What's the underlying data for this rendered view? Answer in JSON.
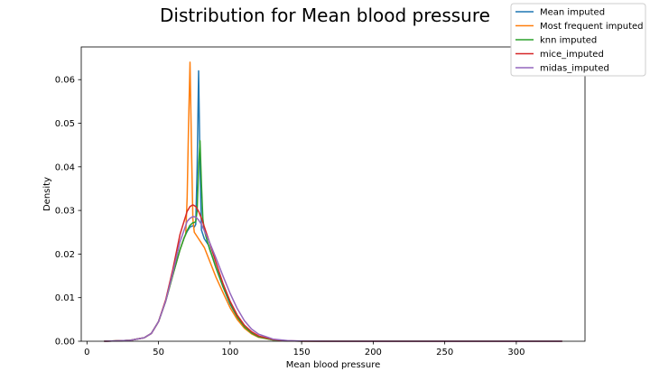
{
  "chart_data": {
    "type": "line",
    "title": "Distribution for Mean blood pressure",
    "xlabel": "Mean blood pressure",
    "ylabel": "Density",
    "xlim": [
      -4,
      348
    ],
    "ylim": [
      0,
      0.0675
    ],
    "x_ticks": [
      0,
      50,
      100,
      150,
      200,
      250,
      300
    ],
    "y_ticks": [
      0.0,
      0.01,
      0.02,
      0.03,
      0.04,
      0.05,
      0.06
    ],
    "y_tick_labels": [
      "0.00",
      "0.01",
      "0.02",
      "0.03",
      "0.04",
      "0.05",
      "0.06"
    ],
    "grid": false,
    "legend_position": "top-right",
    "series": [
      {
        "name": "Mean imputed",
        "color": "#1f77b4",
        "x": [
          12,
          30,
          40,
          45,
          50,
          55,
          60,
          65,
          68,
          70,
          72,
          74,
          75,
          76,
          77,
          78,
          79,
          80,
          81,
          82,
          85,
          88,
          90,
          95,
          100,
          105,
          110,
          115,
          120,
          130,
          140,
          150,
          170,
          200,
          250,
          300,
          332
        ],
        "y": [
          0,
          0.0002,
          0.0008,
          0.0018,
          0.0045,
          0.0092,
          0.0152,
          0.021,
          0.0238,
          0.0252,
          0.0262,
          0.0265,
          0.0262,
          0.0268,
          0.04,
          0.062,
          0.04,
          0.0255,
          0.0245,
          0.0235,
          0.022,
          0.019,
          0.017,
          0.0125,
          0.0085,
          0.0055,
          0.0032,
          0.0018,
          0.001,
          0.0003,
          8e-05,
          2e-05,
          0,
          0,
          0,
          0,
          0
        ]
      },
      {
        "name": "Most frequent imputed",
        "color": "#ff7f0e",
        "x": [
          12,
          30,
          40,
          45,
          50,
          55,
          60,
          65,
          68,
          69,
          70,
          71,
          72,
          73,
          74,
          75,
          78,
          80,
          82,
          85,
          88,
          90,
          95,
          100,
          105,
          110,
          115,
          120,
          130,
          140,
          150,
          170,
          200,
          250,
          300,
          332
        ],
        "y": [
          0,
          0.0002,
          0.0008,
          0.0018,
          0.0045,
          0.0092,
          0.0152,
          0.021,
          0.0238,
          0.0245,
          0.033,
          0.05,
          0.064,
          0.045,
          0.028,
          0.025,
          0.0235,
          0.0225,
          0.0215,
          0.019,
          0.0165,
          0.0148,
          0.0112,
          0.0077,
          0.005,
          0.003,
          0.0017,
          0.0009,
          0.0003,
          8e-05,
          2e-05,
          0,
          0,
          0,
          0,
          0
        ]
      },
      {
        "name": "knn imputed",
        "color": "#2ca02c",
        "x": [
          12,
          30,
          40,
          45,
          50,
          55,
          60,
          65,
          68,
          70,
          72,
          74,
          75,
          76,
          77,
          78,
          79,
          80,
          81,
          82,
          84,
          86,
          88,
          90,
          95,
          100,
          105,
          110,
          115,
          120,
          130,
          140,
          150,
          170,
          200,
          250,
          300,
          332
        ],
        "y": [
          0,
          0.0002,
          0.0008,
          0.0018,
          0.0045,
          0.0092,
          0.0152,
          0.021,
          0.0238,
          0.0254,
          0.0266,
          0.0272,
          0.0272,
          0.0275,
          0.03,
          0.04,
          0.046,
          0.036,
          0.028,
          0.0255,
          0.023,
          0.0208,
          0.019,
          0.017,
          0.0126,
          0.0087,
          0.0056,
          0.0033,
          0.0019,
          0.001,
          0.0003,
          8e-05,
          2e-05,
          0,
          0,
          0,
          0,
          0
        ]
      },
      {
        "name": "mice_imputed",
        "color": "#d62728",
        "x": [
          12,
          30,
          40,
          45,
          50,
          55,
          60,
          65,
          70,
          72,
          74,
          76,
          78,
          80,
          85,
          90,
          95,
          100,
          105,
          110,
          115,
          120,
          130,
          140,
          150,
          170,
          200,
          250,
          300,
          332
        ],
        "y": [
          0,
          0.0002,
          0.0008,
          0.0018,
          0.0045,
          0.0095,
          0.0165,
          0.0245,
          0.0298,
          0.0309,
          0.0313,
          0.0309,
          0.0298,
          0.0282,
          0.0233,
          0.0182,
          0.0133,
          0.0092,
          0.006,
          0.0037,
          0.0022,
          0.0012,
          0.0004,
          0.0001,
          3e-05,
          0,
          0,
          0,
          0,
          0
        ]
      },
      {
        "name": "midas_imputed",
        "color": "#9467bd",
        "x": [
          12,
          30,
          40,
          45,
          50,
          55,
          60,
          65,
          70,
          72,
          74,
          76,
          78,
          80,
          85,
          90,
          95,
          100,
          105,
          110,
          115,
          120,
          130,
          140,
          150,
          170,
          200,
          250,
          300,
          332
        ],
        "y": [
          0,
          0.0002,
          0.0008,
          0.0018,
          0.0045,
          0.0092,
          0.0157,
          0.0228,
          0.0275,
          0.0282,
          0.0286,
          0.0285,
          0.0278,
          0.0268,
          0.0232,
          0.0192,
          0.015,
          0.011,
          0.0075,
          0.0047,
          0.0028,
          0.0016,
          0.0005,
          0.00015,
          4e-05,
          0,
          0,
          0,
          0,
          0
        ]
      }
    ]
  }
}
